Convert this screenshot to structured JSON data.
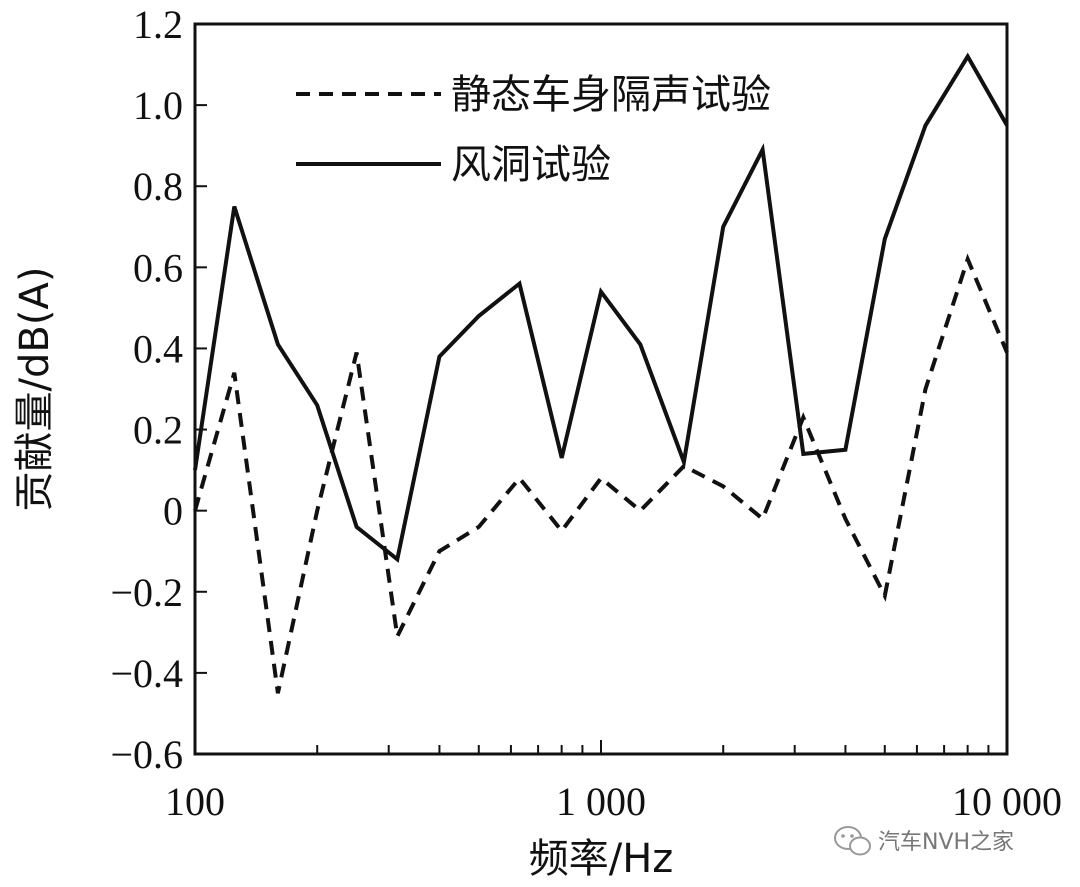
{
  "chart_data": {
    "type": "line",
    "title": "",
    "xlabel": "频率/Hz",
    "ylabel": "贡献量/dB(A)",
    "x_scale": "log",
    "xlim": [
      100,
      10000
    ],
    "ylim": [
      -0.6,
      1.2
    ],
    "x_tick_values": [
      100,
      1000,
      10000
    ],
    "x_tick_labels": [
      "100",
      "1 000",
      "10 000"
    ],
    "y_tick_values": [
      -0.6,
      -0.4,
      -0.2,
      0,
      0.2,
      0.4,
      0.6,
      0.8,
      1.0,
      1.2
    ],
    "y_tick_labels": [
      "−0.6",
      "−0.4",
      "−0.2",
      "0",
      "0.2",
      "0.4",
      "0.6",
      "0.8",
      "1.0",
      "1.2"
    ],
    "grid": false,
    "legend_position": "top",
    "x": [
      100,
      125,
      160,
      200,
      250,
      315,
      400,
      500,
      630,
      800,
      1000,
      1250,
      1600,
      2000,
      2500,
      3150,
      4000,
      5000,
      6300,
      8000,
      10000
    ],
    "series": [
      {
        "name": "静态车身隔声试验",
        "style": "dashed",
        "values": [
          0.0,
          0.34,
          -0.45,
          0.0,
          0.39,
          -0.31,
          -0.1,
          -0.04,
          0.08,
          -0.05,
          0.08,
          0.0,
          0.11,
          0.06,
          -0.02,
          0.23,
          -0.02,
          -0.21,
          0.3,
          0.62,
          0.39
        ]
      },
      {
        "name": "风洞试验",
        "style": "solid",
        "values": [
          0.1,
          0.75,
          0.41,
          0.26,
          -0.04,
          -0.12,
          0.38,
          0.48,
          0.56,
          0.13,
          0.54,
          0.41,
          0.12,
          0.7,
          0.89,
          0.14,
          0.15,
          0.67,
          0.95,
          1.12,
          0.95
        ]
      }
    ]
  },
  "watermark": {
    "text": "汽车NVH之家",
    "icon": "wechat-icon"
  },
  "colors": {
    "line": "#111111",
    "axis": "#111111",
    "watermark": "#888888"
  }
}
